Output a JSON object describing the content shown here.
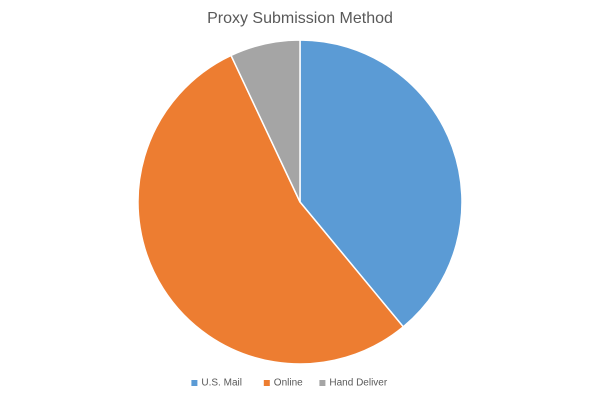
{
  "chart_data": {
    "type": "pie",
    "title": "Proxy Submission Method",
    "categories": [
      "U.S. Mail",
      "Online",
      "Hand Deliver"
    ],
    "values": [
      39,
      54,
      7
    ],
    "colors": [
      "#5b9bd5",
      "#ed7d31",
      "#a5a5a5"
    ],
    "legend": "bottom"
  }
}
